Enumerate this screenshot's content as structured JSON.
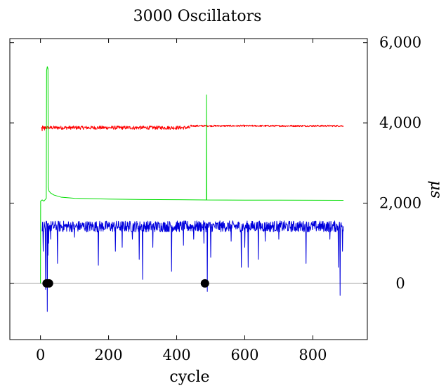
{
  "chart_data": {
    "type": "line",
    "title": "3000 Oscillators",
    "xlabel": "cycle",
    "ylabel": "μs",
    "y_axis_side": "right",
    "xlim": [
      -90,
      960
    ],
    "ylim": [
      -1400,
      6100
    ],
    "x_ticks": [
      0,
      200,
      400,
      600,
      800
    ],
    "x_tick_labels": [
      "0",
      "200",
      "400",
      "600",
      "800"
    ],
    "y_ticks": [
      0,
      2000,
      4000,
      6000
    ],
    "y_tick_labels": [
      "0",
      "2,000",
      "4,000",
      "6,000"
    ],
    "zero_line": true,
    "grid": false,
    "legend": "none",
    "series": [
      {
        "color": "#ff0000",
        "x_start": 3,
        "x_end": 890,
        "segments": [
          {
            "from": 3,
            "to": 440,
            "level": 3880,
            "noise": 45
          },
          {
            "from": 440,
            "to": 890,
            "level": 3925,
            "noise": 22
          }
        ],
        "dips": [
          [
            5,
            3800
          ],
          [
            12,
            3820
          ]
        ]
      },
      {
        "color": "#00dd00",
        "points": [
          [
            0,
            0
          ],
          [
            0.5,
            2050
          ],
          [
            5,
            2080
          ],
          [
            10,
            2050
          ],
          [
            15,
            2100
          ],
          [
            17,
            2120
          ],
          [
            18,
            5300
          ],
          [
            20,
            5400
          ],
          [
            22,
            5350
          ],
          [
            23,
            2400
          ],
          [
            25,
            2300
          ],
          [
            30,
            2250
          ],
          [
            40,
            2200
          ],
          [
            60,
            2150
          ],
          [
            100,
            2120
          ],
          [
            200,
            2100
          ],
          [
            300,
            2090
          ],
          [
            400,
            2085
          ],
          [
            487,
            2080
          ],
          [
            487.5,
            4700
          ],
          [
            488,
            2080
          ],
          [
            600,
            2075
          ],
          [
            700,
            2075
          ],
          [
            800,
            2072
          ],
          [
            890,
            2070
          ]
        ]
      },
      {
        "color": "#0000dd",
        "x_start": 5,
        "x_end": 890,
        "level": 1420,
        "noise": 140,
        "spikes": [
          [
            8,
            800
          ],
          [
            15,
            -150
          ],
          [
            20,
            -700
          ],
          [
            22,
            700
          ],
          [
            24,
            1000
          ],
          [
            30,
            1100
          ],
          [
            50,
            500
          ],
          [
            100,
            1150
          ],
          [
            170,
            450
          ],
          [
            220,
            800
          ],
          [
            240,
            900
          ],
          [
            270,
            1100
          ],
          [
            290,
            600
          ],
          [
            300,
            100
          ],
          [
            330,
            900
          ],
          [
            385,
            300
          ],
          [
            420,
            950
          ],
          [
            450,
            1100
          ],
          [
            480,
            1000
          ],
          [
            490,
            -200
          ],
          [
            500,
            650
          ],
          [
            560,
            1050
          ],
          [
            590,
            400
          ],
          [
            600,
            900
          ],
          [
            610,
            400
          ],
          [
            640,
            600
          ],
          [
            660,
            1050
          ],
          [
            700,
            1100
          ],
          [
            780,
            500
          ],
          [
            850,
            1100
          ],
          [
            875,
            400
          ],
          [
            880,
            -300
          ],
          [
            887,
            800
          ]
        ]
      }
    ],
    "markers": [
      {
        "x": 18,
        "y": 0,
        "color": "#000000"
      },
      {
        "x": 25,
        "y": 0,
        "color": "#000000"
      },
      {
        "x": 483,
        "y": 0,
        "color": "#000000"
      }
    ]
  }
}
